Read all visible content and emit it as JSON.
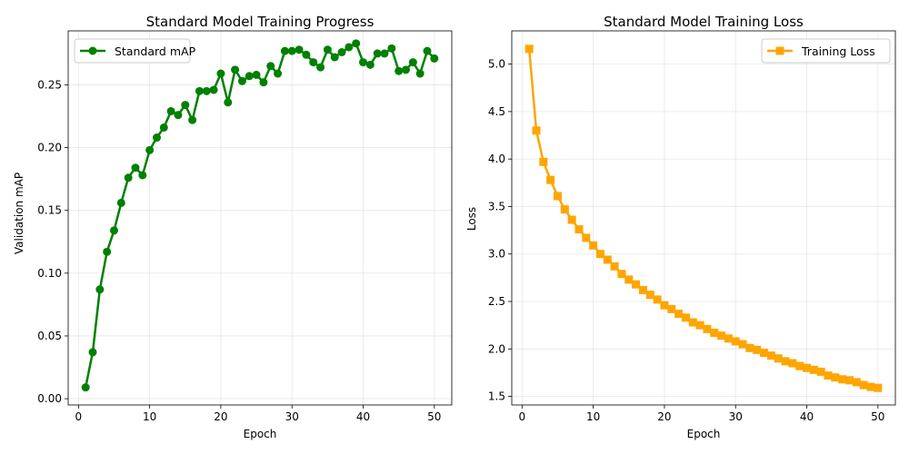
{
  "chart_data": [
    {
      "type": "line",
      "title": "Standard Model Training Progress",
      "xlabel": "Epoch",
      "ylabel": "Validation mAP",
      "xlim": [
        -1.45,
        52.45
      ],
      "ylim": [
        -0.005,
        0.293
      ],
      "xticks": [
        0,
        10,
        20,
        30,
        40,
        50
      ],
      "xtick_labels": [
        "0",
        "10",
        "20",
        "30",
        "40",
        "50"
      ],
      "yticks": [
        0.0,
        0.05,
        0.1,
        0.15,
        0.2,
        0.25
      ],
      "ytick_labels": [
        "0.00",
        "0.05",
        "0.10",
        "0.15",
        "0.20",
        "0.25"
      ],
      "grid": true,
      "legend_position": "top-left",
      "marker": "circle",
      "series": [
        {
          "name": "Standard mAP",
          "color": "#008000",
          "x": [
            1,
            2,
            3,
            4,
            5,
            6,
            7,
            8,
            9,
            10,
            11,
            12,
            13,
            14,
            15,
            16,
            17,
            18,
            19,
            20,
            21,
            22,
            23,
            24,
            25,
            26,
            27,
            28,
            29,
            30,
            31,
            32,
            33,
            34,
            35,
            36,
            37,
            38,
            39,
            40,
            41,
            42,
            43,
            44,
            45,
            46,
            47,
            48,
            49,
            50
          ],
          "values": [
            0.009,
            0.037,
            0.087,
            0.117,
            0.134,
            0.156,
            0.176,
            0.184,
            0.178,
            0.198,
            0.208,
            0.216,
            0.229,
            0.226,
            0.234,
            0.222,
            0.245,
            0.245,
            0.246,
            0.259,
            0.236,
            0.262,
            0.253,
            0.257,
            0.258,
            0.252,
            0.265,
            0.259,
            0.277,
            0.277,
            0.278,
            0.274,
            0.268,
            0.264,
            0.278,
            0.272,
            0.276,
            0.28,
            0.283,
            0.268,
            0.266,
            0.275,
            0.275,
            0.279,
            0.261,
            0.262,
            0.268,
            0.259,
            0.277,
            0.271
          ]
        }
      ]
    },
    {
      "type": "line",
      "title": "Standard Model Training Loss",
      "xlabel": "Epoch",
      "ylabel": "Loss",
      "xlim": [
        -1.45,
        52.45
      ],
      "ylim": [
        1.41,
        5.35
      ],
      "xticks": [
        0,
        10,
        20,
        30,
        40,
        50
      ],
      "xtick_labels": [
        "0",
        "10",
        "20",
        "30",
        "40",
        "50"
      ],
      "yticks": [
        1.5,
        2.0,
        2.5,
        3.0,
        3.5,
        4.0,
        4.5,
        5.0
      ],
      "ytick_labels": [
        "1.5",
        "2.0",
        "2.5",
        "3.0",
        "3.5",
        "4.0",
        "4.5",
        "5.0"
      ],
      "grid": true,
      "legend_position": "top-right",
      "marker": "square",
      "series": [
        {
          "name": "Training Loss",
          "color": "#FFA500",
          "x": [
            1,
            2,
            3,
            4,
            5,
            6,
            7,
            8,
            9,
            10,
            11,
            12,
            13,
            14,
            15,
            16,
            17,
            18,
            19,
            20,
            21,
            22,
            23,
            24,
            25,
            26,
            27,
            28,
            29,
            30,
            31,
            32,
            33,
            34,
            35,
            36,
            37,
            38,
            39,
            40,
            41,
            42,
            43,
            44,
            45,
            46,
            47,
            48,
            49,
            50
          ],
          "values": [
            5.16,
            4.3,
            3.97,
            3.78,
            3.61,
            3.47,
            3.36,
            3.26,
            3.17,
            3.09,
            3.0,
            2.94,
            2.87,
            2.79,
            2.73,
            2.68,
            2.62,
            2.57,
            2.52,
            2.46,
            2.42,
            2.37,
            2.33,
            2.28,
            2.25,
            2.21,
            2.17,
            2.14,
            2.11,
            2.08,
            2.05,
            2.01,
            1.99,
            1.96,
            1.93,
            1.9,
            1.87,
            1.85,
            1.82,
            1.8,
            1.78,
            1.76,
            1.72,
            1.7,
            1.68,
            1.67,
            1.65,
            1.62,
            1.6,
            1.59
          ]
        }
      ]
    }
  ]
}
